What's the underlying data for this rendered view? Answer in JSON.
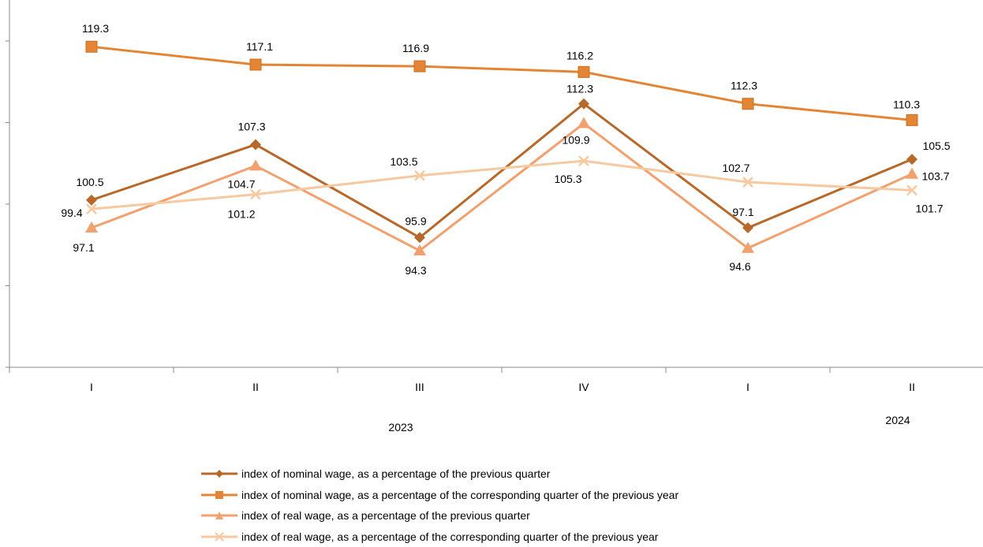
{
  "chart_data": {
    "type": "line",
    "categories": [
      "I",
      "II",
      "III",
      "IV",
      "I",
      "II"
    ],
    "years": [
      {
        "label": "2023",
        "from": 0,
        "to": 3
      },
      {
        "label": "2024",
        "from": 4,
        "to": 5
      }
    ],
    "ylim": [
      80,
      120
    ],
    "grid": false,
    "legend_position": "bottom",
    "series": [
      {
        "name": "index of nominal wage, as a percentage of the previous quarter",
        "values": [
          100.5,
          107.3,
          95.9,
          112.3,
          97.1,
          105.5
        ],
        "labels": [
          "100.5",
          "107.3",
          "95.9",
          "112.3",
          "97.1",
          "105.5"
        ],
        "color": "#B8692A",
        "marker": "diamond"
      },
      {
        "name": "index of nominal wage, as a percentage of the corresponding quarter of the previous year",
        "values": [
          119.3,
          117.1,
          116.9,
          116.2,
          112.3,
          110.3
        ],
        "labels": [
          "119.3",
          "117.1",
          "116.9",
          "116.2",
          "112.3",
          "110.3"
        ],
        "color": "#E48535",
        "marker": "square"
      },
      {
        "name": "index of real wage, as a percentage of the previous quarter",
        "values": [
          97.1,
          104.7,
          94.3,
          109.9,
          94.6,
          103.7
        ],
        "labels": [
          "97.1",
          "104.7",
          "94.3",
          "109.9",
          "94.6",
          "103.7"
        ],
        "color": "#F2A06E",
        "marker": "triangle"
      },
      {
        "name": "index of real wage, as a percentage of the corresponding quarter of the previous year",
        "values": [
          99.4,
          101.2,
          103.5,
          105.3,
          102.7,
          101.7
        ],
        "labels": [
          "99.4",
          "101.2",
          "103.5",
          "105.3",
          "102.7",
          "101.7"
        ],
        "color": "#F7C9A0",
        "marker": "x"
      }
    ]
  }
}
